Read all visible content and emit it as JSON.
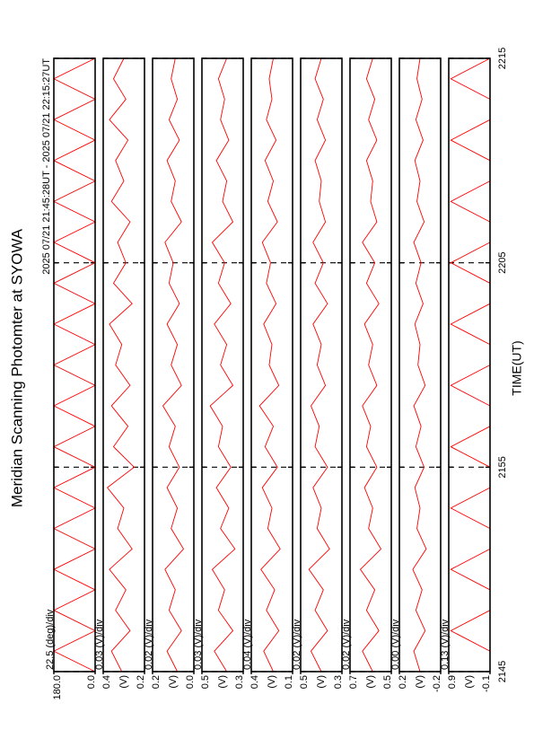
{
  "chart_data": {
    "type": "line",
    "title": "Meridian Scanning Photomter at SYOWA",
    "subtitle": "2025 07/21 21:45:28UT - 2025 07/21 22:15:27UT",
    "xlabel": "TIME(UT)",
    "grid": true,
    "xlim": [
      1305,
      1335
    ],
    "xticks": [
      {
        "value": 1305,
        "label": "2145"
      },
      {
        "value": 1315,
        "label": "2155"
      },
      {
        "value": 1325,
        "label": "2205"
      },
      {
        "value": 1335,
        "label": "2215"
      }
    ],
    "x": [
      1305,
      1306,
      1307,
      1308,
      1309,
      1310,
      1311,
      1312,
      1313,
      1314,
      1315,
      1316,
      1317,
      1318,
      1319,
      1320,
      1321,
      1322,
      1323,
      1324,
      1325,
      1326,
      1327,
      1328,
      1329,
      1330,
      1331,
      1332,
      1333,
      1334,
      1335
    ],
    "series": [
      {
        "scale_label": "22.5 (deg)/div",
        "color": "#ff0000",
        "ylim": [
          0,
          180
        ],
        "yticks": [
          {
            "value": 0,
            "label": "0.0"
          },
          {
            "value": 180,
            "label": "180.0"
          }
        ],
        "values": [
          0,
          180,
          0,
          180,
          0,
          180,
          0,
          180,
          0,
          180,
          0,
          180,
          0,
          180,
          0,
          180,
          0,
          180,
          0,
          180,
          0,
          180,
          0,
          180,
          0,
          180,
          0,
          180,
          0,
          180,
          0
        ]
      },
      {
        "scale_label": "0.03 (V)/div",
        "unit": "(V)",
        "color": "#ff0000",
        "ylim": [
          0.2,
          0.4
        ],
        "yticks": [
          0.2,
          0.4
        ],
        "values": [
          0.31,
          0.36,
          0.27,
          0.34,
          0.29,
          0.37,
          0.26,
          0.33,
          0.3,
          0.38,
          0.25,
          0.35,
          0.28,
          0.36,
          0.27,
          0.34,
          0.31,
          0.37,
          0.26,
          0.35,
          0.29,
          0.33,
          0.27,
          0.36,
          0.3,
          0.34,
          0.28,
          0.37,
          0.29,
          0.35,
          0.3
        ]
      },
      {
        "scale_label": "0.02 (V)/div",
        "unit": "(V)",
        "color": "#ff0000",
        "ylim": [
          0.0,
          0.2
        ],
        "yticks": [
          {
            "value": 0,
            "label": "0.0"
          },
          0.2
        ],
        "values": [
          0.08,
          0.13,
          0.06,
          0.12,
          0.09,
          0.14,
          0.05,
          0.11,
          0.08,
          0.13,
          0.07,
          0.12,
          0.09,
          0.15,
          0.06,
          0.11,
          0.08,
          0.13,
          0.07,
          0.12,
          0.1,
          0.14,
          0.06,
          0.11,
          0.09,
          0.13,
          0.07,
          0.12,
          0.08,
          0.11,
          0.09
        ]
      },
      {
        "scale_label": "0.03 (V)/div",
        "unit": "(V)",
        "color": "#ff0000",
        "ylim": [
          0.3,
          0.5
        ],
        "yticks": [
          0.3,
          0.5
        ],
        "values": [
          0.38,
          0.44,
          0.35,
          0.42,
          0.39,
          0.45,
          0.34,
          0.41,
          0.37,
          0.43,
          0.36,
          0.42,
          0.4,
          0.46,
          0.35,
          0.41,
          0.38,
          0.44,
          0.36,
          0.42,
          0.39,
          0.45,
          0.35,
          0.4,
          0.38,
          0.43,
          0.37,
          0.41,
          0.39,
          0.42,
          0.38
        ]
      },
      {
        "scale_label": "0.04 (V)/div",
        "unit": "(V)",
        "color": "#ff0000",
        "ylim": [
          0.1,
          0.4
        ],
        "yticks": [
          0.1,
          0.4
        ],
        "values": [
          0.24,
          0.31,
          0.2,
          0.29,
          0.23,
          0.33,
          0.19,
          0.28,
          0.25,
          0.32,
          0.21,
          0.3,
          0.24,
          0.34,
          0.2,
          0.27,
          0.25,
          0.31,
          0.22,
          0.29,
          0.26,
          0.32,
          0.21,
          0.28,
          0.24,
          0.3,
          0.22,
          0.29,
          0.25,
          0.27,
          0.24
        ]
      },
      {
        "scale_label": "0.02 (V)/div",
        "unit": "(V)",
        "color": "#ff0000",
        "ylim": [
          0.3,
          0.5
        ],
        "yticks": [
          0.3,
          0.5
        ],
        "values": [
          0.4,
          0.45,
          0.37,
          0.43,
          0.39,
          0.46,
          0.36,
          0.42,
          0.4,
          0.44,
          0.37,
          0.43,
          0.41,
          0.45,
          0.38,
          0.42,
          0.4,
          0.44,
          0.37,
          0.43,
          0.39,
          0.44,
          0.38,
          0.41,
          0.4,
          0.43,
          0.38,
          0.42,
          0.39,
          0.43,
          0.4
        ]
      },
      {
        "scale_label": "0.02 (V)/div",
        "unit": "(V)",
        "color": "#ff0000",
        "ylim": [
          0.5,
          0.7
        ],
        "yticks": [
          0.5,
          0.7
        ],
        "values": [
          0.59,
          0.64,
          0.56,
          0.62,
          0.58,
          0.65,
          0.55,
          0.61,
          0.59,
          0.63,
          0.57,
          0.62,
          0.6,
          0.64,
          0.57,
          0.61,
          0.59,
          0.63,
          0.56,
          0.62,
          0.58,
          0.64,
          0.57,
          0.6,
          0.59,
          0.62,
          0.57,
          0.61,
          0.58,
          0.62,
          0.59
        ]
      },
      {
        "scale_label": "0.00 (V)/div",
        "unit": "(V)",
        "color": "#ff0000",
        "ylim": [
          -0.2,
          0.2
        ],
        "yticks": [
          -0.2,
          0.2
        ],
        "values": [
          0.0,
          0.06,
          -0.05,
          0.04,
          -0.02,
          0.07,
          -0.06,
          0.03,
          0.0,
          0.05,
          -0.04,
          0.04,
          -0.01,
          0.06,
          -0.05,
          0.02,
          0.0,
          0.05,
          -0.03,
          0.04,
          -0.01,
          0.06,
          -0.04,
          0.03,
          0.0,
          0.05,
          -0.03,
          0.04,
          -0.02,
          0.03,
          0.0
        ]
      },
      {
        "scale_label": "0.13 (V)/div",
        "unit": "(V)",
        "color": "#ff0000",
        "ylim": [
          -0.1,
          0.9
        ],
        "yticks": [
          -0.1,
          0.9
        ],
        "values": [
          -0.1,
          -0.1,
          0.85,
          -0.1,
          -0.1,
          0.85,
          -0.1,
          -0.1,
          0.85,
          -0.1,
          -0.1,
          0.85,
          -0.1,
          -0.1,
          0.85,
          -0.1,
          -0.1,
          0.85,
          -0.1,
          -0.1,
          0.85,
          -0.1,
          -0.1,
          0.85,
          -0.1,
          -0.1,
          0.85,
          -0.1,
          -0.1,
          0.85,
          -0.1
        ]
      }
    ]
  }
}
